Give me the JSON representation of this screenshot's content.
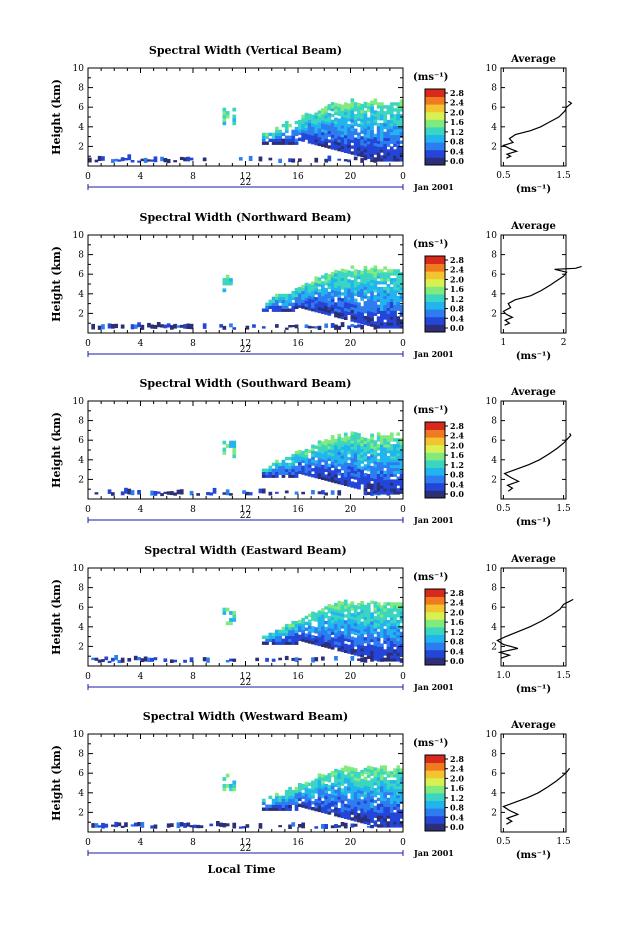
{
  "chart_data": [
    {
      "type": "heatmap",
      "title": "Spectral Width (Vertical Beam)",
      "ylabel": "Height (km)",
      "y_ticks": [
        "2",
        "4",
        "6",
        "8",
        "10"
      ],
      "x_ticks": [
        "0",
        "4",
        "8",
        "12",
        "16",
        "20",
        "0"
      ],
      "day_label": "22",
      "date_label": "Jan 2001",
      "colorbar_unit": "(ms⁻¹)",
      "colorbar_ticks": [
        "0.0",
        "0.4",
        "0.8",
        "1.2",
        "1.6",
        "2.0",
        "2.4",
        "2.8"
      ],
      "profile": {
        "title": "Average",
        "xlabel": "(ms⁻¹)",
        "x_ticks": [
          "0.5",
          "1.5"
        ],
        "y_ticks": [
          "2",
          "4",
          "6",
          "8",
          "10"
        ],
        "points": [
          [
            0.55,
            0.8
          ],
          [
            0.62,
            1.0
          ],
          [
            0.56,
            1.2
          ],
          [
            0.72,
            1.5
          ],
          [
            0.6,
            1.8
          ],
          [
            0.5,
            2.1
          ],
          [
            0.66,
            2.4
          ],
          [
            0.6,
            2.8
          ],
          [
            0.7,
            3.2
          ],
          [
            0.95,
            3.6
          ],
          [
            1.12,
            4.0
          ],
          [
            1.27,
            4.5
          ],
          [
            1.42,
            5.0
          ],
          [
            1.52,
            5.6
          ],
          [
            1.55,
            6.0
          ],
          [
            1.63,
            6.4
          ],
          [
            1.58,
            6.6
          ]
        ]
      }
    },
    {
      "type": "heatmap",
      "title": "Spectral Width (Northward Beam)",
      "ylabel": "Height (km)",
      "y_ticks": [
        "2",
        "4",
        "6",
        "8",
        "10"
      ],
      "x_ticks": [
        "0",
        "4",
        "8",
        "12",
        "16",
        "20",
        "0"
      ],
      "day_label": "22",
      "date_label": "Jan 2001",
      "colorbar_unit": "(ms⁻¹)",
      "colorbar_ticks": [
        "0.0",
        "0.4",
        "0.8",
        "1.2",
        "1.6",
        "2.0",
        "2.4",
        "2.8"
      ],
      "profile": {
        "title": "Average",
        "xlabel": "(ms⁻¹)",
        "x_ticks": [
          "1",
          "2"
        ],
        "y_ticks": [
          "2",
          "4",
          "6",
          "8",
          "10"
        ],
        "points": [
          [
            1.02,
            0.8
          ],
          [
            1.1,
            1.0
          ],
          [
            1.03,
            1.3
          ],
          [
            1.15,
            1.6
          ],
          [
            1.05,
            1.9
          ],
          [
            1.0,
            2.2
          ],
          [
            1.12,
            2.6
          ],
          [
            1.08,
            3.0
          ],
          [
            1.2,
            3.4
          ],
          [
            1.45,
            3.8
          ],
          [
            1.62,
            4.3
          ],
          [
            1.78,
            4.9
          ],
          [
            1.9,
            5.4
          ],
          [
            2.0,
            5.8
          ],
          [
            2.05,
            6.2
          ],
          [
            1.85,
            6.5
          ],
          [
            2.2,
            6.6
          ],
          [
            2.3,
            6.8
          ]
        ]
      }
    },
    {
      "type": "heatmap",
      "title": "Spectral Width (Southward Beam)",
      "ylabel": "Height (km)",
      "y_ticks": [
        "2",
        "4",
        "6",
        "8",
        "10"
      ],
      "x_ticks": [
        "0",
        "4",
        "8",
        "12",
        "16",
        "20",
        "0"
      ],
      "day_label": "22",
      "date_label": "Jan 2001",
      "colorbar_unit": "(ms⁻¹)",
      "colorbar_ticks": [
        "0.0",
        "0.4",
        "0.8",
        "1.2",
        "1.6",
        "2.0",
        "2.4",
        "2.8"
      ],
      "profile": {
        "title": "Average",
        "xlabel": "(ms⁻¹)",
        "x_ticks": [
          "0.5",
          "1.5"
        ],
        "y_ticks": [
          "2",
          "4",
          "6",
          "8",
          "10"
        ],
        "points": [
          [
            0.58,
            0.8
          ],
          [
            0.65,
            1.1
          ],
          [
            0.57,
            1.4
          ],
          [
            0.75,
            1.8
          ],
          [
            0.62,
            2.2
          ],
          [
            0.52,
            2.6
          ],
          [
            0.7,
            3.0
          ],
          [
            0.92,
            3.5
          ],
          [
            1.1,
            4.0
          ],
          [
            1.26,
            4.6
          ],
          [
            1.4,
            5.2
          ],
          [
            1.5,
            5.7
          ],
          [
            1.56,
            6.1
          ],
          [
            1.62,
            6.5
          ],
          [
            1.6,
            6.7
          ]
        ]
      }
    },
    {
      "type": "heatmap",
      "title": "Spectral Width (Eastward Beam)",
      "ylabel": "Height (km)",
      "y_ticks": [
        "2",
        "4",
        "6",
        "8",
        "10"
      ],
      "x_ticks": [
        "0",
        "4",
        "8",
        "12",
        "16",
        "20",
        "0"
      ],
      "day_label": "22",
      "date_label": "Jan 2001",
      "colorbar_unit": "(ms⁻¹)",
      "colorbar_ticks": [
        "0.0",
        "0.4",
        "0.8",
        "1.2",
        "1.6",
        "2.0",
        "2.4",
        "2.8"
      ],
      "profile": {
        "title": "Average",
        "xlabel": "(ms⁻¹)",
        "x_ticks": [
          "1.0",
          "1.5"
        ],
        "y_ticks": [
          "2",
          "4",
          "6",
          "8",
          "10"
        ],
        "points": [
          [
            0.98,
            0.8
          ],
          [
            1.05,
            1.1
          ],
          [
            0.97,
            1.4
          ],
          [
            1.12,
            1.8
          ],
          [
            1.0,
            2.2
          ],
          [
            0.95,
            2.6
          ],
          [
            1.02,
            3.0
          ],
          [
            1.12,
            3.5
          ],
          [
            1.22,
            4.0
          ],
          [
            1.32,
            4.6
          ],
          [
            1.4,
            5.2
          ],
          [
            1.47,
            5.8
          ],
          [
            1.5,
            6.3
          ],
          [
            1.55,
            6.6
          ],
          [
            1.58,
            6.8
          ]
        ]
      }
    },
    {
      "type": "heatmap",
      "title": "Spectral Width (Westward Beam)",
      "ylabel": "Height (km)",
      "xlabel": "Local Time",
      "y_ticks": [
        "2",
        "4",
        "6",
        "8",
        "10"
      ],
      "x_ticks": [
        "0",
        "4",
        "8",
        "12",
        "16",
        "20",
        "0"
      ],
      "day_label": "22",
      "date_label": "Jan 2001",
      "colorbar_unit": "(ms⁻¹)",
      "colorbar_ticks": [
        "0.0",
        "0.4",
        "0.8",
        "1.2",
        "1.6",
        "2.0",
        "2.4",
        "2.8"
      ],
      "profile": {
        "title": "Average",
        "xlabel": "(ms⁻¹)",
        "x_ticks": [
          "0.5",
          "1.5"
        ],
        "y_ticks": [
          "2",
          "4",
          "6",
          "8",
          "10"
        ],
        "points": [
          [
            0.55,
            0.8
          ],
          [
            0.64,
            1.1
          ],
          [
            0.56,
            1.4
          ],
          [
            0.74,
            1.8
          ],
          [
            0.6,
            2.2
          ],
          [
            0.5,
            2.6
          ],
          [
            0.68,
            3.0
          ],
          [
            0.9,
            3.5
          ],
          [
            1.08,
            4.0
          ],
          [
            1.24,
            4.6
          ],
          [
            1.38,
            5.2
          ],
          [
            1.48,
            5.7
          ],
          [
            1.55,
            6.1
          ],
          [
            1.6,
            6.5
          ]
        ]
      }
    }
  ]
}
